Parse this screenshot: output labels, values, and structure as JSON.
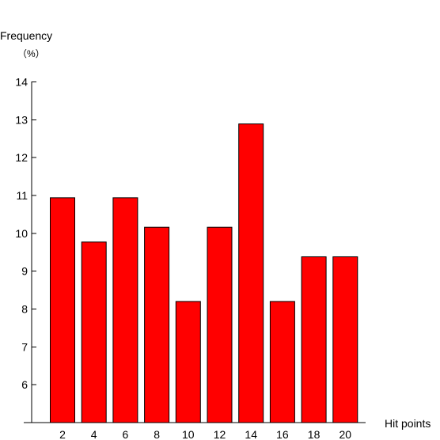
{
  "chart_data": {
    "type": "bar",
    "ylabel": "Frequency",
    "ylabel_unit": "（%）",
    "xlabel": "Hit points",
    "categories": [
      "2",
      "4",
      "6",
      "8",
      "10",
      "12",
      "14",
      "16",
      "18",
      "20"
    ],
    "values": [
      10.94,
      9.77,
      10.94,
      10.16,
      8.2,
      10.16,
      12.89,
      8.2,
      9.38,
      9.38
    ],
    "ylim": [
      5,
      14
    ],
    "yticks": [
      6,
      7,
      8,
      9,
      10,
      11,
      12,
      13,
      14
    ],
    "grid": false,
    "legend": "none",
    "bar_color": "#ff0000"
  }
}
